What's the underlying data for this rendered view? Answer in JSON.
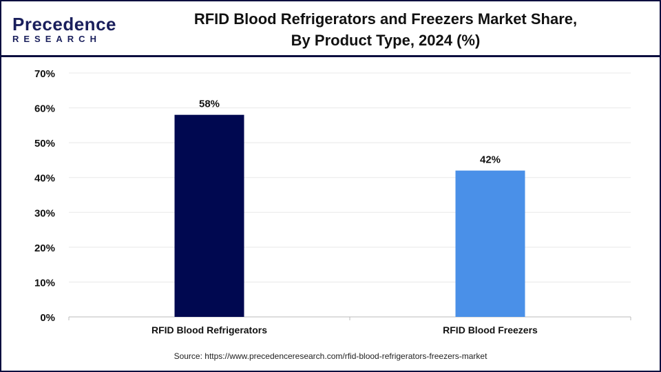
{
  "logo": {
    "line1": "Precedence",
    "line2": "RESEARCH"
  },
  "title_line1": "RFID Blood Refrigerators and Freezers Market Share,",
  "title_line2": "By Product Type, 2024 (%)",
  "source": "Source: https://www.precedenceresearch.com/rfid-blood-refrigerators-freezers-market",
  "chart_data": {
    "type": "bar",
    "title": "RFID Blood Refrigerators and Freezers Market Share, By Product Type, 2024 (%)",
    "categories": [
      "RFID Blood Refrigerators",
      "RFID Blood Freezers"
    ],
    "values": [
      58,
      42
    ],
    "data_labels": [
      "58%",
      "42%"
    ],
    "colors": [
      "#000850",
      "#4a90e8"
    ],
    "ylim": [
      0,
      70
    ],
    "yticks": [
      "0%",
      "10%",
      "20%",
      "30%",
      "40%",
      "50%",
      "60%",
      "70%"
    ],
    "grid": true,
    "xlabel": "",
    "ylabel": ""
  }
}
